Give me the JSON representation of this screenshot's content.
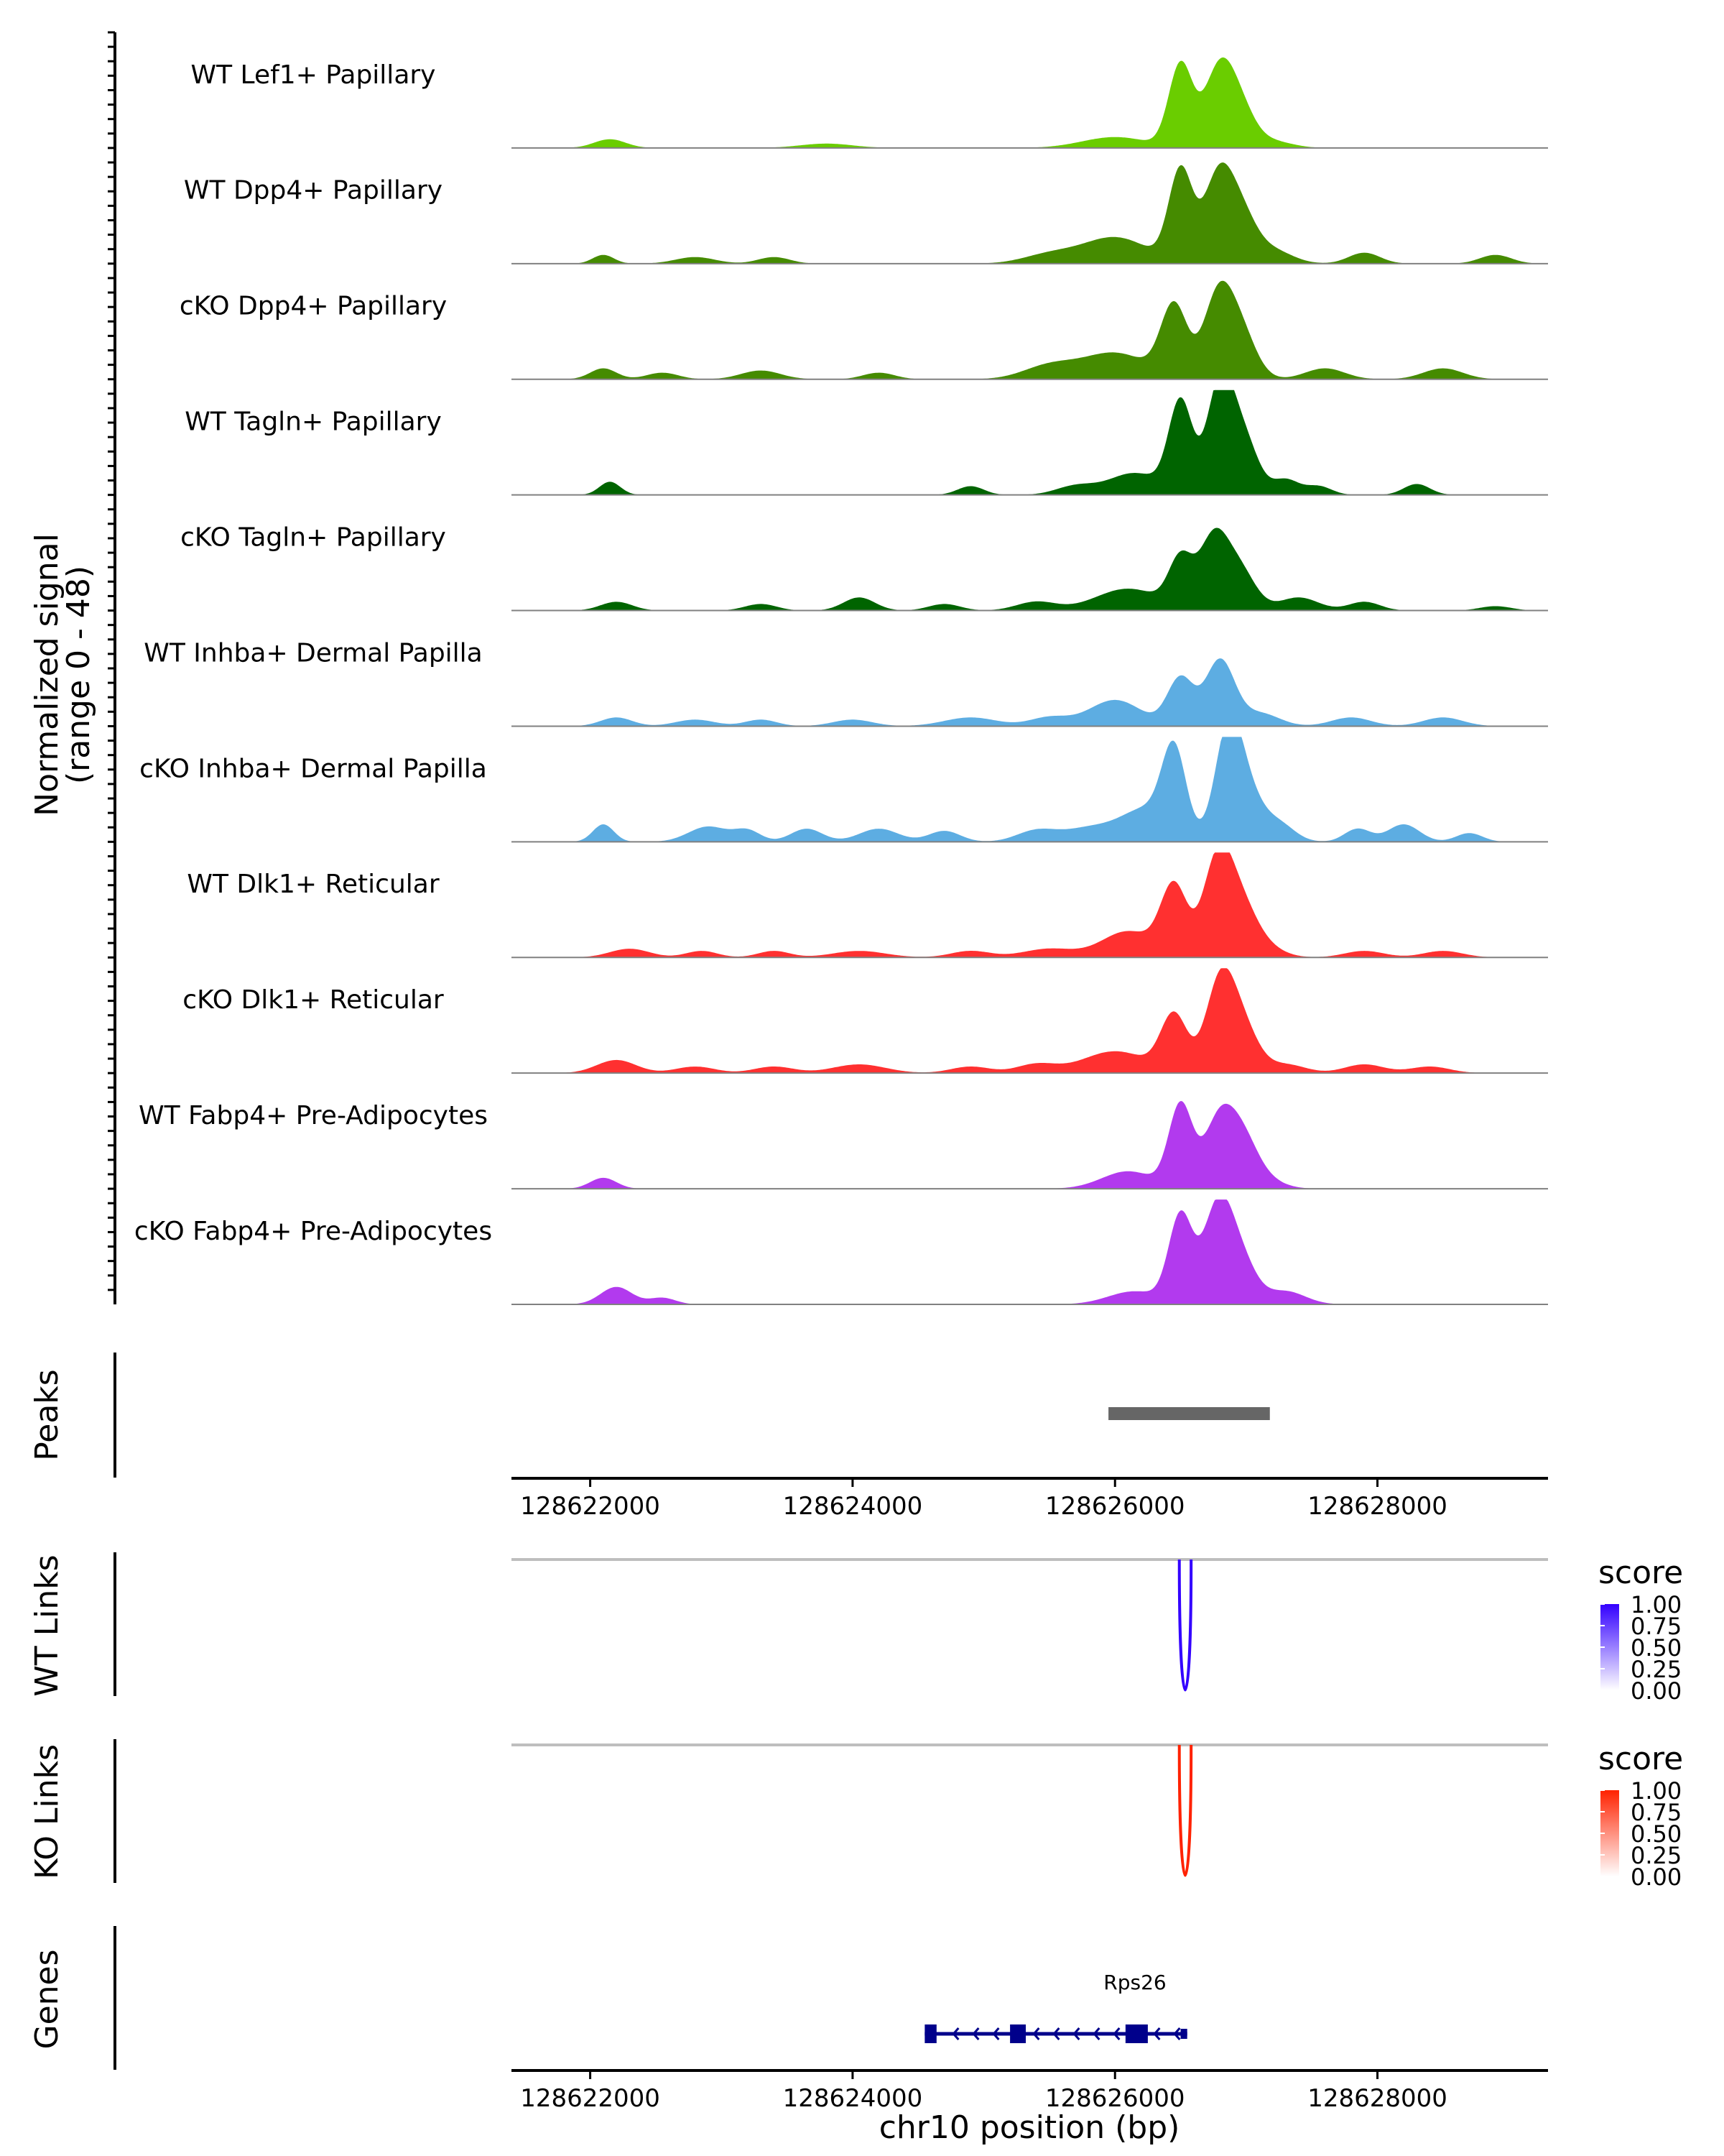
{
  "chart_data": {
    "type": "area",
    "title": "",
    "region": "chr10",
    "xlim": [
      128621400,
      128629300
    ],
    "x_ticks": [
      128622000,
      128624000,
      128626000,
      128628000
    ],
    "x_tick_labels": [
      "128622000",
      "128624000",
      "128626000",
      "128628000"
    ],
    "xlabel": "chr10 position (bp)",
    "ylabel_line1": "Normalized signal",
    "ylabel_line2": "(range 0 - 48)",
    "ylim": [
      0,
      48
    ],
    "coverage_tracks": [
      {
        "name": "WT Lef1+ Papillary",
        "color": "#6ACD00",
        "peaks": [
          [
            128622150,
            4,
            120
          ],
          [
            128623800,
            2,
            200
          ],
          [
            128626000,
            5,
            250
          ],
          [
            128626500,
            38,
            90
          ],
          [
            128626780,
            30,
            110
          ],
          [
            128626930,
            20,
            120
          ],
          [
            128627200,
            3,
            150
          ]
        ]
      },
      {
        "name": "WT Dpp4+ Papillary",
        "color": "#458B00",
        "peaks": [
          [
            128622100,
            4,
            80
          ],
          [
            128622800,
            3,
            150
          ],
          [
            128623400,
            3,
            120
          ],
          [
            128625500,
            4,
            200
          ],
          [
            128626000,
            12,
            250
          ],
          [
            128626500,
            42,
            90
          ],
          [
            128626780,
            36,
            110
          ],
          [
            128626950,
            22,
            120
          ],
          [
            128627200,
            6,
            150
          ],
          [
            128627900,
            5,
            120
          ],
          [
            128628900,
            4,
            120
          ]
        ]
      },
      {
        "name": "cKO Dpp4+ Papillary",
        "color": "#458B00",
        "peaks": [
          [
            128622100,
            5,
            100
          ],
          [
            128622550,
            3,
            120
          ],
          [
            128623300,
            4,
            150
          ],
          [
            128624200,
            3,
            120
          ],
          [
            128625500,
            6,
            200
          ],
          [
            128626000,
            12,
            250
          ],
          [
            128626450,
            33,
            100
          ],
          [
            128626780,
            35,
            110
          ],
          [
            128626950,
            22,
            120
          ],
          [
            128627600,
            5,
            150
          ],
          [
            128628500,
            5,
            150
          ]
        ]
      },
      {
        "name": "WT Tagln+ Papillary",
        "color": "#006400",
        "peaks": [
          [
            128622150,
            6,
            80
          ],
          [
            128624900,
            4,
            100
          ],
          [
            128625700,
            4,
            150
          ],
          [
            128626150,
            10,
            200
          ],
          [
            128626500,
            42,
            90
          ],
          [
            128626800,
            50,
            100
          ],
          [
            128626980,
            25,
            110
          ],
          [
            128627300,
            7,
            100
          ],
          [
            128627550,
            4,
            100
          ],
          [
            128628300,
            5,
            100
          ]
        ]
      },
      {
        "name": "cKO Tagln+ Papillary",
        "color": "#006400",
        "peaks": [
          [
            128622200,
            4,
            120
          ],
          [
            128623300,
            3,
            120
          ],
          [
            128624050,
            6,
            120
          ],
          [
            128624700,
            3,
            120
          ],
          [
            128625400,
            4,
            150
          ],
          [
            128626100,
            10,
            250
          ],
          [
            128626500,
            22,
            90
          ],
          [
            128626750,
            32,
            110
          ],
          [
            128626950,
            18,
            120
          ],
          [
            128627400,
            6,
            150
          ],
          [
            128627900,
            4,
            120
          ],
          [
            128628900,
            2,
            120
          ]
        ]
      },
      {
        "name": "WT Inhba+ Dermal Papilla",
        "color": "#5DADE2",
        "peaks": [
          [
            128622200,
            4,
            120
          ],
          [
            128622800,
            3,
            150
          ],
          [
            128623300,
            3,
            120
          ],
          [
            128624000,
            3,
            150
          ],
          [
            128624900,
            4,
            200
          ],
          [
            128625500,
            4,
            150
          ],
          [
            128626000,
            12,
            200
          ],
          [
            128626500,
            22,
            100
          ],
          [
            128626800,
            30,
            110
          ],
          [
            128627100,
            6,
            150
          ],
          [
            128627800,
            4,
            150
          ],
          [
            128628500,
            4,
            150
          ]
        ]
      },
      {
        "name": "cKO Inhba+ Dermal Papilla",
        "color": "#5DADE2",
        "peaks": [
          [
            128622100,
            8,
            80
          ],
          [
            128622900,
            7,
            150
          ],
          [
            128623200,
            5,
            100
          ],
          [
            128623650,
            6,
            120
          ],
          [
            128624200,
            6,
            150
          ],
          [
            128624700,
            5,
            120
          ],
          [
            128625400,
            5,
            150
          ],
          [
            128625800,
            6,
            200
          ],
          [
            128626250,
            15,
            200
          ],
          [
            128626450,
            37,
            90
          ],
          [
            128626860,
            46,
            100
          ],
          [
            128627000,
            22,
            120
          ],
          [
            128627250,
            8,
            120
          ],
          [
            128627850,
            6,
            100
          ],
          [
            128628200,
            8,
            120
          ],
          [
            128628700,
            4,
            100
          ]
        ]
      },
      {
        "name": "WT Dlk1+ Reticular",
        "color": "#FF3030",
        "peaks": [
          [
            128622300,
            4,
            150
          ],
          [
            128622850,
            3,
            120
          ],
          [
            128623400,
            3,
            120
          ],
          [
            128624050,
            3,
            200
          ],
          [
            128624900,
            3,
            150
          ],
          [
            128625500,
            4,
            200
          ],
          [
            128626100,
            12,
            200
          ],
          [
            128626450,
            32,
            100
          ],
          [
            128626780,
            43,
            110
          ],
          [
            128626950,
            20,
            120
          ],
          [
            128627100,
            6,
            150
          ],
          [
            128627900,
            3,
            150
          ],
          [
            128628500,
            3,
            150
          ]
        ]
      },
      {
        "name": "cKO Dlk1+ Reticular",
        "color": "#FF3030",
        "peaks": [
          [
            128622200,
            6,
            150
          ],
          [
            128622800,
            3,
            150
          ],
          [
            128623400,
            3,
            150
          ],
          [
            128624050,
            4,
            200
          ],
          [
            128624900,
            3,
            150
          ],
          [
            128625400,
            4,
            150
          ],
          [
            128626000,
            10,
            250
          ],
          [
            128626450,
            26,
            100
          ],
          [
            128626800,
            40,
            110
          ],
          [
            128626970,
            20,
            120
          ],
          [
            128627300,
            4,
            150
          ],
          [
            128627900,
            4,
            150
          ],
          [
            128628400,
            3,
            150
          ]
        ]
      },
      {
        "name": "WT Fabp4+ Pre-Adipocytes",
        "color": "#B23AEE",
        "peaks": [
          [
            128622100,
            5,
            100
          ],
          [
            128626100,
            8,
            200
          ],
          [
            128626500,
            38,
            90
          ],
          [
            128626780,
            27,
            110
          ],
          [
            128626950,
            22,
            120
          ],
          [
            128627100,
            5,
            150
          ]
        ]
      },
      {
        "name": "cKO Fabp4+ Pre-Adipocytes",
        "color": "#B23AEE",
        "peaks": [
          [
            128622200,
            8,
            120
          ],
          [
            128622550,
            3,
            100
          ],
          [
            128626150,
            6,
            200
          ],
          [
            128626500,
            40,
            90
          ],
          [
            128626780,
            42,
            110
          ],
          [
            128626950,
            20,
            120
          ],
          [
            128627300,
            6,
            150
          ]
        ]
      }
    ],
    "peaks_track": {
      "label": "Peaks",
      "regions": [
        [
          128625950,
          128627180
        ]
      ],
      "color": "#666666"
    },
    "link_tracks": [
      {
        "label": "WT Links",
        "color": "#3300FF",
        "legend_title": "score",
        "legend_ticks": [
          "1.00",
          "0.75",
          "0.50",
          "0.25",
          "0.00"
        ],
        "links": [
          [
            128626490,
            128626580,
            1.0
          ]
        ]
      },
      {
        "label": "KO Links",
        "color": "#FF2200",
        "legend_title": "score",
        "legend_ticks": [
          "1.00",
          "0.75",
          "0.50",
          "0.25",
          "0.00"
        ],
        "links": [
          [
            128626490,
            128626580,
            1.0
          ]
        ]
      }
    ],
    "genes_track": {
      "label": "Genes",
      "gene_name": "Rps26",
      "strand": "-",
      "color": "#00008B",
      "start": 128624550,
      "end": 128626550,
      "exons": [
        [
          128624550,
          128624640
        ],
        [
          128625200,
          128625320
        ],
        [
          128626080,
          128626250
        ],
        [
          128626500,
          128626550
        ]
      ]
    }
  }
}
